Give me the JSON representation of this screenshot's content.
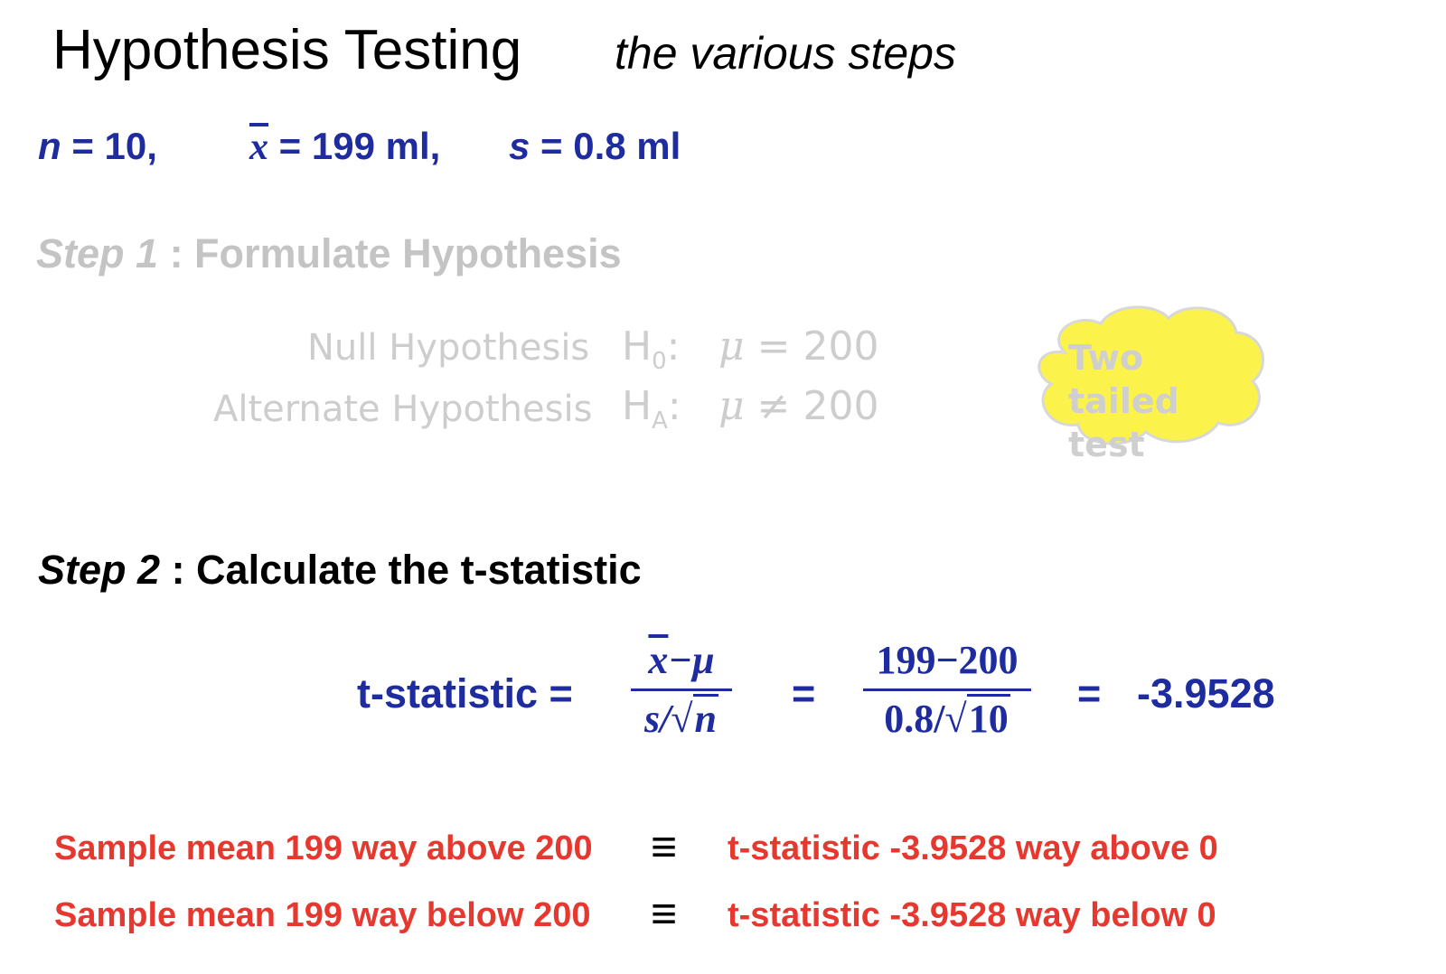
{
  "title": "Hypothesis Testing",
  "subtitle": "the various steps",
  "given": {
    "n_var": "n",
    "n_value": "= 10,",
    "xbar_var": "x",
    "xbar_value": "= 199 ml,",
    "s_var": "s",
    "s_value": "= 0.8 ml"
  },
  "step1": {
    "label": "Step 1",
    "text": ": Formulate Hypothesis",
    "null_label": "Null Hypothesis",
    "null_symbol": "H",
    "null_sub": "0",
    "null_expr_mu": "μ",
    "null_expr_rest": "= 200",
    "alt_label": "Alternate Hypothesis",
    "alt_symbol": "H",
    "alt_sub": "A",
    "alt_expr_mu": "μ",
    "alt_expr_rest": "≠ 200",
    "colon": ":",
    "cloud_text": "Two tailed test",
    "cloud_color": "#fbf24b"
  },
  "step2": {
    "label": "Step 2",
    "text": ": Calculate the t-statistic",
    "formula_label": "t-statistic  =",
    "num_symbolic_x": "x",
    "num_symbolic_rest": "−μ",
    "den_symbolic_s": "s/",
    "den_symbolic_n": "n",
    "sqrt_sign": "√",
    "eq1": "=",
    "num_numeric": "199−200",
    "den_numeric_a": "0.8/",
    "den_numeric_b": "10",
    "eq2": "=",
    "result": "-3.9528"
  },
  "conclusions": [
    {
      "left": "Sample mean 199 way above 200",
      "sym": "≡",
      "right": "t-statistic -3.9528 way above 0"
    },
    {
      "left": "Sample mean 199 way below 200",
      "sym": "≡",
      "right": "t-statistic -3.9528 way below 0"
    }
  ],
  "colors": {
    "blue": "#1e2ca0",
    "red": "#e6382f",
    "faded": "#c4c4c4"
  }
}
